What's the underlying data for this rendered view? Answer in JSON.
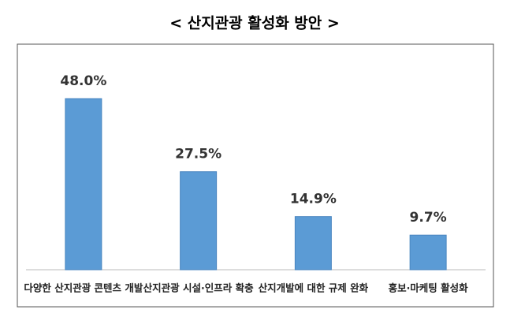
{
  "chart_data": {
    "type": "bar",
    "title": "< 산지관광 활성화 방안 >",
    "categories": [
      "다양한 산지관광 콘텐츠 개발",
      "산지관광 시설·인프라 확충",
      "산지개발에 대한 규제 완화",
      "홍보·마케팅 활성화"
    ],
    "values": [
      48.0,
      27.5,
      14.9,
      9.7
    ],
    "value_labels": [
      "48.0%",
      "27.5%",
      "14.9%",
      "9.7%"
    ],
    "color": "#5b9bd5"
  }
}
